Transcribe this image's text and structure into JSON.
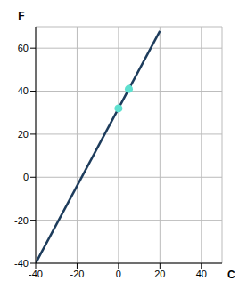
{
  "chart_data": {
    "type": "line",
    "x_label": "C",
    "y_label": "F",
    "x": [
      -40,
      20
    ],
    "values": [
      -40,
      68
    ],
    "color": "#1d3c5c",
    "points": {
      "x": [
        0,
        5
      ],
      "values": [
        32,
        41
      ],
      "color": "#5ee0cf",
      "marker": "circle"
    },
    "xlim": [
      -40,
      50
    ],
    "ylim": [
      -40,
      70
    ],
    "xticks": [
      -40,
      -20,
      0,
      20,
      40
    ],
    "yticks": [
      -40,
      -20,
      0,
      20,
      40,
      60
    ],
    "grid": true
  }
}
